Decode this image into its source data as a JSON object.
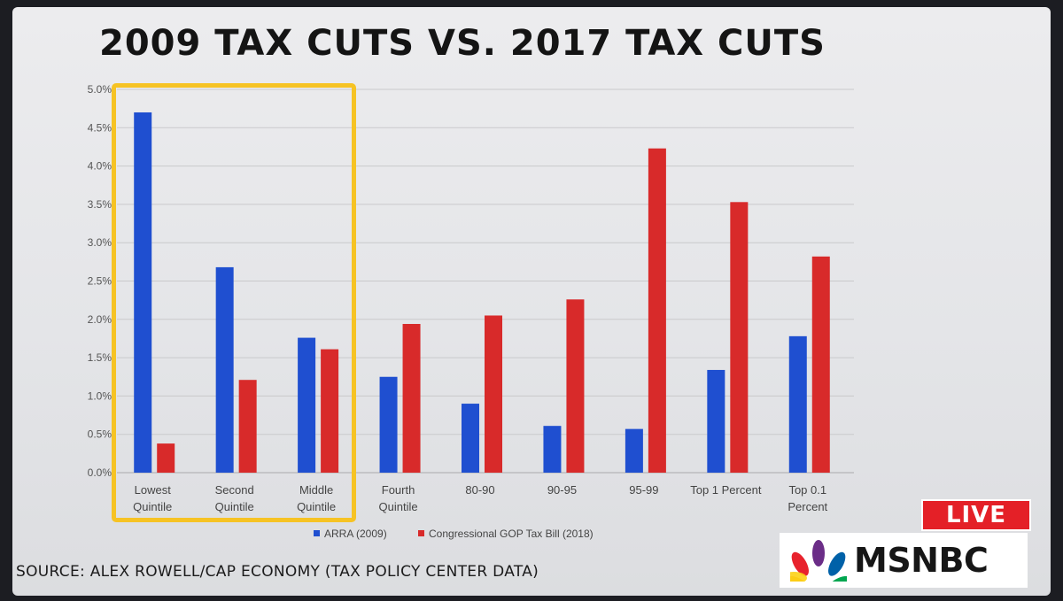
{
  "title": "2009 TAX CUTS VS. 2017 TAX CUTS",
  "source": "SOURCE: ALEX ROWELL/CAP ECONOMY (TAX POLICY CENTER DATA)",
  "badge": {
    "live": "LIVE",
    "network": "MSNBC"
  },
  "colors": {
    "arra": "#1f4fd0",
    "gop": "#d82a2a",
    "highlight": "#f6c324",
    "grid": "#c9c9cb"
  },
  "chart_data": {
    "type": "bar",
    "categories": [
      [
        "Lowest",
        "Quintile"
      ],
      [
        "Second",
        "Quintile"
      ],
      [
        "Middle",
        "Quintile"
      ],
      [
        "Fourth",
        "Quintile"
      ],
      [
        "80-90"
      ],
      [
        "90-95"
      ],
      [
        "95-99"
      ],
      [
        "Top 1 Percent"
      ],
      [
        "Top 0.1",
        "Percent"
      ]
    ],
    "series": [
      {
        "name": "ARRA (2009)",
        "values": [
          4.7,
          2.68,
          1.76,
          1.25,
          0.9,
          0.61,
          0.57,
          1.34,
          1.78
        ]
      },
      {
        "name": "Congressional GOP Tax Bill (2018)",
        "values": [
          0.38,
          1.21,
          1.61,
          1.94,
          2.05,
          2.26,
          4.23,
          3.53,
          2.82
        ]
      }
    ],
    "ylim": [
      0,
      5
    ],
    "yticks": [
      "0.0%",
      "0.5%",
      "1.0%",
      "1.5%",
      "2.0%",
      "2.5%",
      "3.0%",
      "3.5%",
      "4.0%",
      "4.5%",
      "5.0%"
    ],
    "grid": true,
    "legend_position": "bottom",
    "annotation": "yellow box highlights Lowest, Second and Middle Quintile"
  }
}
